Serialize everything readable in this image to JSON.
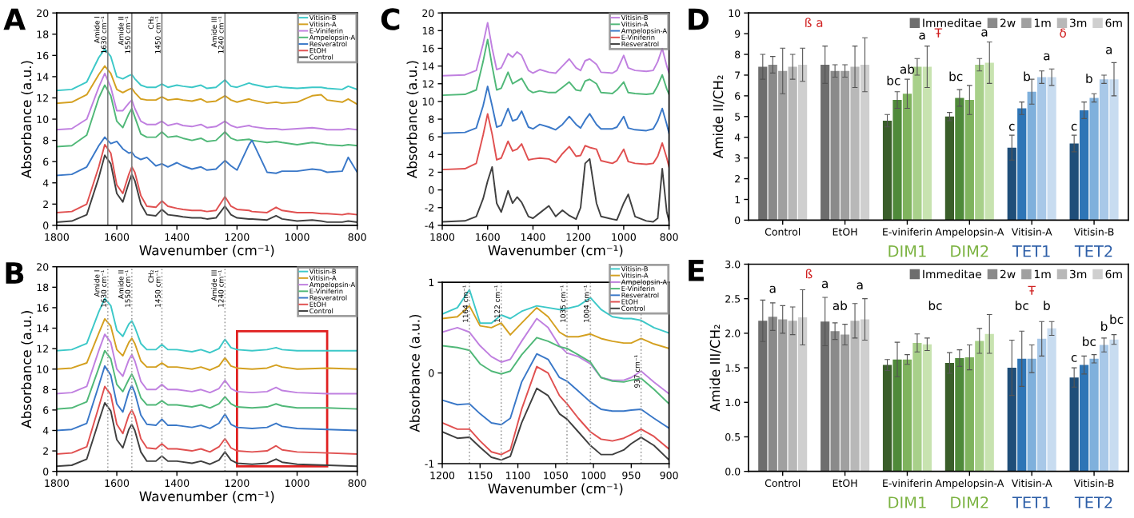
{
  "chart_data": [
    {
      "type": "line",
      "title": "A",
      "xlabel": "Wavenumber (cm⁻¹)",
      "ylabel": "Absorbance (a.u.)",
      "xlim": [
        1800,
        800
      ],
      "ylim": [
        0,
        20
      ],
      "xticks": [
        1800,
        1600,
        1400,
        1200,
        1000,
        800
      ],
      "yticks": [
        0,
        2,
        4,
        6,
        8,
        10,
        12,
        14,
        16,
        18,
        20
      ],
      "legend": "top right",
      "x": [
        1800,
        1750,
        1700,
        1660,
        1640,
        1620,
        1600,
        1580,
        1560,
        1550,
        1540,
        1520,
        1500,
        1470,
        1450,
        1430,
        1400,
        1380,
        1350,
        1320,
        1300,
        1270,
        1240,
        1220,
        1200,
        1160,
        1150,
        1100,
        1070,
        1050,
        1000,
        950,
        920,
        900,
        850,
        830,
        800
      ],
      "series": [
        {
          "name": "Vitisin-B",
          "color": "#3cc8c8",
          "values": [
            12.7,
            12.8,
            13.5,
            15.8,
            16.6,
            15.9,
            14.0,
            13.8,
            14.1,
            14.2,
            13.8,
            13.2,
            13.0,
            13.0,
            13.3,
            13.0,
            13.2,
            13.1,
            13.0,
            13.2,
            12.9,
            13.0,
            13.7,
            13.1,
            13.0,
            13.4,
            13.3,
            13.0,
            13.1,
            13.0,
            12.9,
            13.0,
            13.0,
            12.9,
            12.8,
            13.1,
            12.8
          ]
        },
        {
          "name": "Vitisin-A",
          "color": "#d4a020",
          "values": [
            11.5,
            11.6,
            12.3,
            14.2,
            15.0,
            14.3,
            12.8,
            12.5,
            12.8,
            12.9,
            12.5,
            11.9,
            11.8,
            11.8,
            12.1,
            11.8,
            11.9,
            11.8,
            11.7,
            11.9,
            11.6,
            11.7,
            12.2,
            11.8,
            11.6,
            11.9,
            11.8,
            11.5,
            11.6,
            11.5,
            11.6,
            12.2,
            12.3,
            11.8,
            11.6,
            11.9,
            11.4
          ]
        },
        {
          "name": "E-Viniferin",
          "color": "#c080e0",
          "values": [
            9.0,
            9.1,
            10.0,
            13.0,
            14.3,
            13.0,
            10.8,
            10.8,
            11.5,
            11.8,
            11.0,
            9.8,
            9.5,
            9.5,
            9.8,
            9.4,
            9.6,
            9.4,
            9.3,
            9.5,
            9.2,
            9.3,
            9.8,
            9.4,
            9.2,
            9.4,
            9.3,
            9.1,
            9.1,
            9.0,
            9.1,
            9.2,
            9.1,
            9.0,
            9.0,
            9.1,
            9.0
          ]
        },
        {
          "name": "Ampelopsin-A",
          "color": "#50b878",
          "values": [
            7.4,
            7.5,
            8.5,
            12.0,
            13.2,
            12.2,
            9.8,
            9.2,
            10.5,
            11.0,
            10.2,
            8.6,
            8.3,
            8.3,
            8.8,
            8.3,
            8.4,
            8.2,
            8.0,
            8.2,
            7.9,
            8.0,
            8.8,
            8.2,
            8.0,
            8.1,
            8.0,
            7.8,
            7.9,
            7.8,
            7.6,
            7.8,
            7.7,
            7.6,
            7.5,
            7.6,
            7.5
          ]
        },
        {
          "name": "Resveratrol",
          "color": "#3a78c8",
          "values": [
            4.7,
            4.8,
            5.5,
            7.5,
            8.3,
            7.7,
            7.9,
            7.2,
            6.8,
            6.9,
            6.5,
            6.2,
            6.4,
            5.6,
            5.8,
            5.5,
            5.9,
            5.6,
            5.3,
            5.5,
            5.2,
            5.3,
            6.1,
            5.6,
            5.2,
            7.6,
            8.0,
            5.0,
            4.9,
            5.1,
            5.1,
            5.3,
            5.2,
            5.0,
            5.1,
            6.4,
            5.0
          ]
        },
        {
          "name": "EtOH",
          "color": "#e05050",
          "values": [
            1.2,
            1.3,
            2.0,
            5.5,
            7.6,
            6.8,
            3.8,
            3.0,
            4.8,
            5.5,
            5.0,
            2.8,
            1.8,
            1.7,
            2.3,
            1.8,
            1.6,
            1.5,
            1.4,
            1.4,
            1.3,
            1.4,
            2.7,
            1.8,
            1.5,
            1.4,
            1.3,
            1.2,
            1.7,
            1.4,
            1.2,
            1.2,
            1.1,
            1.1,
            1.0,
            1.1,
            1.0
          ]
        },
        {
          "name": "Control",
          "color": "#404040",
          "values": [
            0.3,
            0.4,
            1.0,
            4.5,
            6.6,
            5.8,
            3.0,
            2.2,
            4.0,
            4.8,
            4.2,
            2.0,
            1.0,
            0.9,
            1.5,
            1.0,
            0.9,
            0.8,
            0.7,
            0.7,
            0.6,
            0.7,
            1.8,
            1.0,
            0.7,
            0.6,
            0.6,
            0.5,
            0.9,
            0.6,
            0.4,
            0.5,
            0.4,
            0.3,
            0.3,
            0.4,
            0.3
          ]
        }
      ],
      "ref_lines": [
        {
          "axis": "x",
          "value": 1630,
          "label": "Amide I\n1630 cm⁻¹",
          "color": "#808080",
          "line_style": "solid"
        },
        {
          "axis": "x",
          "value": 1550,
          "label": "Amide II\n1550 cm⁻¹",
          "color": "#808080",
          "line_style": "solid"
        },
        {
          "axis": "x",
          "value": 1450,
          "label": "CH₂\n1450 cm⁻¹",
          "color": "#808080",
          "line_style": "solid"
        },
        {
          "axis": "x",
          "value": 1240,
          "label": "Amide III\n1240 cm⁻¹",
          "color": "#808080",
          "line_style": "solid"
        }
      ]
    },
    {
      "type": "line",
      "title": "C",
      "xlabel": "Wavenumber (cm⁻¹)",
      "ylabel": "Absorbance (a.u.)",
      "xlim": [
        1800,
        800
      ],
      "ylim": [
        -4,
        20
      ],
      "xticks": [
        1800,
        1600,
        1400,
        1200,
        1000,
        800
      ],
      "yticks": [
        -4,
        -2,
        0,
        2,
        4,
        6,
        8,
        10,
        12,
        14,
        16,
        18,
        20
      ],
      "legend": "top right",
      "x": [
        1800,
        1700,
        1650,
        1620,
        1600,
        1580,
        1560,
        1540,
        1510,
        1490,
        1470,
        1450,
        1420,
        1400,
        1370,
        1330,
        1300,
        1270,
        1240,
        1210,
        1190,
        1170,
        1150,
        1120,
        1100,
        1050,
        1030,
        1000,
        980,
        950,
        900,
        870,
        850,
        830,
        810,
        800
      ],
      "series": [
        {
          "name": "Vitisin-B",
          "color": "#c080e0",
          "values": [
            12.9,
            13.0,
            13.5,
            16.5,
            18.9,
            16.0,
            13.6,
            13.8,
            15.4,
            15.0,
            15.6,
            15.2,
            13.5,
            13.2,
            13.6,
            13.3,
            13.2,
            14.0,
            14.8,
            13.8,
            13.5,
            14.6,
            14.8,
            14.2,
            13.3,
            13.2,
            13.5,
            15.2,
            13.8,
            13.5,
            13.4,
            13.5,
            14.5,
            16.0,
            14.0,
            13.2
          ]
        },
        {
          "name": "Vitisin-A",
          "color": "#50b878",
          "values": [
            10.7,
            10.8,
            11.3,
            14.5,
            17.0,
            14.0,
            11.3,
            11.5,
            13.3,
            12.0,
            12.3,
            12.6,
            11.3,
            11.0,
            11.2,
            11.0,
            11.0,
            11.6,
            12.2,
            11.3,
            11.2,
            12.3,
            12.5,
            12.0,
            11.0,
            10.9,
            11.3,
            12.2,
            11.0,
            10.9,
            10.8,
            10.9,
            11.8,
            13.0,
            11.4,
            10.8
          ]
        },
        {
          "name": "Ampelopsin-A",
          "color": "#3a78c8",
          "values": [
            6.4,
            6.5,
            7.0,
            9.5,
            11.7,
            9.5,
            7.1,
            7.3,
            9.2,
            7.8,
            8.0,
            8.9,
            7.1,
            6.9,
            7.4,
            7.1,
            6.8,
            7.4,
            8.3,
            7.4,
            7.0,
            7.9,
            8.6,
            7.4,
            6.9,
            6.9,
            7.1,
            8.3,
            7.0,
            6.8,
            6.7,
            6.9,
            7.8,
            9.2,
            7.4,
            6.4
          ]
        },
        {
          "name": "E-Viniferin",
          "color": "#e05050",
          "values": [
            2.3,
            2.4,
            3.0,
            6.2,
            8.6,
            6.3,
            3.4,
            3.6,
            5.5,
            4.4,
            4.6,
            5.2,
            3.4,
            3.5,
            3.6,
            3.5,
            3.1,
            4.1,
            4.9,
            3.8,
            3.9,
            5.0,
            4.8,
            4.6,
            3.3,
            3.0,
            3.3,
            4.6,
            3.2,
            3.0,
            2.9,
            3.0,
            3.8,
            5.3,
            3.6,
            2.6
          ]
        },
        {
          "name": "Resveratrol",
          "color": "#404040",
          "values": [
            -3.6,
            -3.5,
            -3.0,
            -1.0,
            1.0,
            2.6,
            -1.5,
            -2.5,
            -0.1,
            -1.5,
            -0.8,
            -1.4,
            -3.0,
            -3.2,
            -2.6,
            -1.8,
            -3.0,
            -2.3,
            -2.9,
            -3.3,
            -2.0,
            3.0,
            3.5,
            -1.5,
            -3.0,
            -3.3,
            -3.4,
            -1.5,
            -0.5,
            -3.0,
            -3.5,
            -3.6,
            -3.2,
            2.4,
            -2.5,
            -3.5
          ]
        }
      ]
    },
    {
      "type": "bar",
      "title": "D",
      "ylabel": "Amide II/CH₂",
      "ylim": [
        0,
        10
      ],
      "yticks": [
        0,
        1,
        2,
        3,
        4,
        5,
        6,
        7,
        8,
        9,
        10
      ],
      "legend": "top right",
      "categories": [
        "Control",
        "EtOH",
        "E-viniferin",
        "Ampelopsin-A",
        "Vitisin-A",
        "Vitisin-B"
      ],
      "series": [
        {
          "name": "Immeditae",
          "color": "#6e6e6e",
          "colors": [
            "#6e6e6e",
            "#6e6e6e",
            "#3a5e2a",
            "#3a5e2a",
            "#1f4e79",
            "#1f4e79"
          ],
          "values": [
            7.4,
            7.5,
            4.8,
            5.0,
            3.5,
            3.7
          ],
          "errors": [
            0.6,
            0.9,
            0.3,
            0.2,
            0.6,
            0.4
          ]
        },
        {
          "name": "2w",
          "color": "#8a8a8a",
          "colors": [
            "#8a8a8a",
            "#8a8a8a",
            "#4f8a3a",
            "#4f8a3a",
            "#2e75b6",
            "#2e75b6"
          ],
          "values": [
            7.5,
            7.2,
            5.8,
            5.9,
            5.4,
            5.3
          ],
          "errors": [
            0.4,
            0.3,
            0.4,
            0.4,
            0.3,
            0.4
          ]
        },
        {
          "name": "1m",
          "color": "#a0a0a0",
          "colors": [
            "#a0a0a0",
            "#a0a0a0",
            "#7fb35e",
            "#7fb35e",
            "#7fb0dc",
            "#7fb0dc"
          ],
          "values": [
            7.2,
            7.2,
            6.1,
            5.8,
            6.2,
            5.9
          ],
          "errors": [
            1.1,
            0.3,
            0.7,
            0.7,
            0.6,
            0.2
          ]
        },
        {
          "name": "3m",
          "color": "#b8b8b8",
          "colors": [
            "#b8b8b8",
            "#b8b8b8",
            "#a8d08a",
            "#a8d08a",
            "#a8c8e8",
            "#a8c8e8"
          ],
          "values": [
            7.4,
            7.4,
            7.4,
            7.5,
            6.9,
            6.8
          ],
          "errors": [
            0.6,
            1.0,
            0.4,
            0.3,
            0.3,
            0.2
          ]
        },
        {
          "name": "6m",
          "color": "#cfcfcf",
          "colors": [
            "#cfcfcf",
            "#cfcfcf",
            "#c8e3b0",
            "#c8e3b0",
            "#c8dcf0",
            "#c8dcf0"
          ],
          "values": [
            7.5,
            7.5,
            7.4,
            7.6,
            6.9,
            6.8
          ],
          "errors": [
            0.8,
            1.3,
            1.0,
            1.0,
            0.4,
            0.8
          ]
        }
      ],
      "annotations": [
        "ß a",
        "bc",
        "ab",
        "a",
        "bc",
        "Ŧ",
        "a",
        "c",
        "b",
        "δ",
        "a",
        "c",
        "b",
        "a",
        "DIM1",
        "DIM2",
        "TET1",
        "TET2"
      ]
    },
    {
      "type": "line",
      "title": "B",
      "xlabel": "Wavenumber (cm⁻¹)",
      "ylabel": "Absorbance (a.u.)",
      "xlim": [
        1800,
        800
      ],
      "ylim": [
        0,
        20
      ],
      "xticks": [
        1800,
        1600,
        1400,
        1200,
        1000,
        800
      ],
      "yticks": [
        0,
        2,
        4,
        6,
        8,
        10,
        12,
        14,
        16,
        18,
        20
      ],
      "legend": "top right",
      "x": [
        1800,
        1750,
        1700,
        1660,
        1640,
        1620,
        1600,
        1580,
        1560,
        1550,
        1540,
        1520,
        1500,
        1470,
        1450,
        1430,
        1400,
        1350,
        1320,
        1290,
        1260,
        1240,
        1220,
        1200,
        1150,
        1100,
        1070,
        1050,
        1000,
        900,
        800
      ],
      "series": [
        {
          "name": "Vitisin-B",
          "color": "#3cc8c8",
          "values": [
            11.8,
            11.9,
            12.5,
            15.6,
            16.9,
            16.2,
            13.8,
            13.2,
            14.4,
            14.7,
            14.1,
            12.5,
            11.9,
            11.9,
            12.4,
            11.9,
            11.9,
            11.7,
            11.9,
            11.6,
            12.0,
            12.9,
            12.1,
            11.9,
            11.8,
            11.9,
            12.1,
            11.9,
            11.8,
            11.8,
            11.8
          ]
        },
        {
          "name": "Vitisin-A",
          "color": "#d4a020",
          "values": [
            10.0,
            10.1,
            10.6,
            13.5,
            14.9,
            14.2,
            11.9,
            11.3,
            12.6,
            13.0,
            12.5,
            10.8,
            10.2,
            10.2,
            10.6,
            10.2,
            10.2,
            10.0,
            10.2,
            9.9,
            10.3,
            11.1,
            10.3,
            10.1,
            10.0,
            10.1,
            10.4,
            10.2,
            10.0,
            10.1,
            10.0
          ]
        },
        {
          "name": "Ampelopsin-A",
          "color": "#c080e0",
          "values": [
            7.6,
            7.7,
            8.3,
            11.8,
            13.4,
            12.6,
            10.0,
            9.3,
            10.9,
            11.4,
            10.8,
            8.8,
            8.0,
            8.0,
            8.5,
            8.0,
            8.0,
            7.8,
            8.0,
            7.7,
            8.1,
            8.9,
            8.1,
            7.8,
            7.7,
            7.8,
            8.2,
            7.9,
            7.7,
            7.6,
            7.6
          ]
        },
        {
          "name": "E-Viniferin",
          "color": "#50b878",
          "values": [
            6.1,
            6.2,
            6.8,
            10.1,
            11.8,
            11.0,
            8.5,
            7.8,
            9.0,
            9.5,
            8.9,
            7.2,
            6.5,
            6.5,
            6.9,
            6.5,
            6.5,
            6.3,
            6.5,
            6.2,
            6.6,
            7.3,
            6.6,
            6.3,
            6.2,
            6.3,
            6.6,
            6.4,
            6.2,
            6.2,
            6.1
          ]
        },
        {
          "name": "Resveratrol",
          "color": "#3a78c8",
          "values": [
            4.0,
            4.1,
            4.7,
            8.4,
            10.3,
            9.4,
            6.6,
            5.8,
            7.8,
            8.4,
            7.7,
            5.5,
            4.6,
            4.5,
            5.1,
            4.5,
            4.5,
            4.3,
            4.5,
            4.2,
            4.7,
            5.6,
            4.6,
            4.3,
            4.2,
            4.3,
            4.7,
            4.4,
            4.2,
            4.1,
            4.0
          ]
        },
        {
          "name": "EtOH",
          "color": "#e05050",
          "values": [
            1.7,
            1.8,
            2.4,
            6.3,
            8.3,
            7.5,
            4.6,
            3.7,
            5.5,
            6.0,
            5.4,
            3.2,
            2.3,
            2.2,
            2.7,
            2.2,
            2.2,
            2.0,
            2.2,
            1.9,
            2.4,
            3.2,
            2.3,
            2.0,
            1.9,
            2.0,
            2.5,
            2.1,
            1.9,
            1.8,
            1.7
          ]
        },
        {
          "name": "Control",
          "color": "#404040",
          "values": [
            0.5,
            0.6,
            1.2,
            4.9,
            6.7,
            5.9,
            3.1,
            2.3,
            4.1,
            4.6,
            4.0,
            1.9,
            1.0,
            1.0,
            1.5,
            1.0,
            1.0,
            0.8,
            1.0,
            0.7,
            1.1,
            1.9,
            1.1,
            0.8,
            0.7,
            0.8,
            1.2,
            0.9,
            0.7,
            0.6,
            0.5
          ]
        }
      ],
      "ref_lines": [
        {
          "axis": "x",
          "value": 1630,
          "label": "Amide I\n1630 cm⁻¹",
          "color": "#a0a0a0",
          "line_style": "dotted"
        },
        {
          "axis": "x",
          "value": 1550,
          "label": "Amide II\n1550 cm⁻¹",
          "color": "#a0a0a0",
          "line_style": "dotted"
        },
        {
          "axis": "x",
          "value": 1450,
          "label": "CH₂\n1450 cm⁻¹",
          "color": "#a0a0a0",
          "line_style": "dotted"
        },
        {
          "axis": "x",
          "value": 1240,
          "label": "Amide III\n1240 cm⁻¹",
          "color": "#a0a0a0",
          "line_style": "dotted"
        }
      ]
    },
    {
      "type": "line",
      "xlabel": "Wavenumber (cm⁻¹)",
      "ylabel": "Absorbance (a.u.)",
      "xlim": [
        1200,
        900
      ],
      "ylim": [
        -1,
        1
      ],
      "xticks": [
        1200,
        1150,
        1100,
        1050,
        1000,
        950,
        900
      ],
      "yticks": [
        -1,
        0,
        1
      ],
      "legend": "top right",
      "x": [
        1200,
        1180,
        1164,
        1150,
        1135,
        1122,
        1110,
        1095,
        1075,
        1060,
        1045,
        1035,
        1020,
        1004,
        990,
        975,
        960,
        950,
        937,
        920,
        900
      ],
      "series": [
        {
          "name": "Vitisin-B",
          "color": "#3cc8c8",
          "values": [
            0.65,
            0.72,
            0.92,
            0.55,
            0.55,
            0.64,
            0.6,
            0.68,
            0.74,
            0.72,
            0.7,
            0.71,
            0.74,
            0.83,
            0.7,
            0.62,
            0.6,
            0.6,
            0.58,
            0.5,
            0.44
          ]
        },
        {
          "name": "Vitisin-A",
          "color": "#d4a020",
          "values": [
            0.6,
            0.62,
            0.74,
            0.52,
            0.5,
            0.55,
            0.42,
            0.55,
            0.72,
            0.62,
            0.45,
            0.4,
            0.4,
            0.43,
            0.38,
            0.35,
            0.33,
            0.33,
            0.38,
            0.32,
            0.27
          ]
        },
        {
          "name": "Ampelopsin-A",
          "color": "#c080e0",
          "values": [
            0.45,
            0.5,
            0.45,
            0.3,
            0.18,
            0.12,
            0.15,
            0.35,
            0.6,
            0.5,
            0.3,
            0.22,
            0.18,
            0.1,
            -0.05,
            -0.08,
            -0.08,
            -0.05,
            0.02,
            -0.1,
            -0.23
          ]
        },
        {
          "name": "E-Viniferin",
          "color": "#50b878",
          "values": [
            0.3,
            0.28,
            0.25,
            0.1,
            0.02,
            -0.01,
            0.02,
            0.2,
            0.39,
            0.35,
            0.29,
            0.27,
            0.2,
            0.12,
            -0.05,
            -0.09,
            -0.1,
            -0.08,
            -0.06,
            -0.18,
            -0.34
          ]
        },
        {
          "name": "Resveratrol",
          "color": "#3a78c8",
          "values": [
            -0.3,
            -0.35,
            -0.34,
            -0.45,
            -0.55,
            -0.57,
            -0.5,
            -0.1,
            0.21,
            0.15,
            -0.05,
            -0.09,
            -0.2,
            -0.32,
            -0.4,
            -0.42,
            -0.42,
            -0.41,
            -0.4,
            -0.5,
            -0.61
          ]
        },
        {
          "name": "EtOH",
          "color": "#e05050",
          "values": [
            -0.55,
            -0.62,
            -0.62,
            -0.75,
            -0.87,
            -0.9,
            -0.85,
            -0.4,
            0.07,
            0.0,
            -0.25,
            -0.34,
            -0.5,
            -0.65,
            -0.73,
            -0.75,
            -0.72,
            -0.68,
            -0.62,
            -0.7,
            -0.84
          ]
        },
        {
          "name": "Control",
          "color": "#404040",
          "values": [
            -0.65,
            -0.72,
            -0.71,
            -0.82,
            -0.93,
            -0.96,
            -0.92,
            -0.55,
            -0.17,
            -0.25,
            -0.45,
            -0.51,
            -0.65,
            -0.8,
            -0.9,
            -0.9,
            -0.85,
            -0.78,
            -0.71,
            -0.8,
            -0.96
          ]
        }
      ],
      "ref_lines": [
        {
          "axis": "x",
          "value": 1164,
          "label": "1164 cm⁻¹",
          "color": "#a0a0a0",
          "line_style": "dotted"
        },
        {
          "axis": "x",
          "value": 1122,
          "label": "1122 cm⁻¹",
          "color": "#a0a0a0",
          "line_style": "dotted"
        },
        {
          "axis": "x",
          "value": 1035,
          "label": "1035 cm⁻¹",
          "color": "#a0a0a0",
          "line_style": "dotted"
        },
        {
          "axis": "x",
          "value": 1004,
          "label": "1004 cm⁻¹",
          "color": "#a0a0a0",
          "line_style": "dotted"
        },
        {
          "axis": "x",
          "value": 937,
          "label": "937 cm⁻¹",
          "color": "#a0a0a0",
          "line_style": "dotted"
        }
      ]
    },
    {
      "type": "bar",
      "title": "E",
      "ylabel": "Amide III/CH₂",
      "ylim": [
        0,
        3
      ],
      "yticks": [
        {
          "value": 0,
          "label": "0.0"
        },
        0.5,
        {
          "value": 1,
          "label": "1.0"
        },
        1.5,
        {
          "value": 2,
          "label": "2.0"
        },
        2.5,
        {
          "value": 3,
          "label": "3.0"
        }
      ],
      "legend": "top right",
      "categories": [
        "Control",
        "EtOH",
        "E-viniferin",
        "Ampelopsin-A",
        "Vitisin-A",
        "Vitisin-B"
      ],
      "series": [
        {
          "name": "Immeditae",
          "color": "#6e6e6e",
          "colors": [
            "#6e6e6e",
            "#6e6e6e",
            "#3a5e2a",
            "#3a5e2a",
            "#1f4e79",
            "#1f4e79"
          ],
          "values": [
            2.18,
            2.17,
            1.54,
            1.57,
            1.5,
            1.36
          ],
          "errors": [
            0.3,
            0.35,
            0.08,
            0.15,
            0.4,
            0.14
          ]
        },
        {
          "name": "2w",
          "color": "#8a8a8a",
          "colors": [
            "#8a8a8a",
            "#8a8a8a",
            "#4f8a3a",
            "#4f8a3a",
            "#2e75b6",
            "#2e75b6"
          ],
          "values": [
            2.24,
            2.03,
            1.62,
            1.64,
            1.63,
            1.54
          ],
          "errors": [
            0.2,
            0.12,
            0.25,
            0.12,
            0.4,
            0.13
          ]
        },
        {
          "name": "1m",
          "color": "#a0a0a0",
          "colors": [
            "#a0a0a0",
            "#a0a0a0",
            "#7fb35e",
            "#7fb35e",
            "#7fb0dc",
            "#7fb0dc"
          ],
          "values": [
            2.2,
            1.98,
            1.62,
            1.65,
            1.63,
            1.63
          ],
          "errors": [
            0.2,
            0.15,
            0.07,
            0.18,
            0.2,
            0.06
          ]
        },
        {
          "name": "3m",
          "color": "#b8b8b8",
          "colors": [
            "#b8b8b8",
            "#b8b8b8",
            "#a8d08a",
            "#a8d08a",
            "#a8c8e8",
            "#a8c8e8"
          ],
          "values": [
            2.18,
            2.18,
            1.86,
            1.89,
            1.92,
            1.83
          ],
          "errors": [
            0.2,
            0.25,
            0.13,
            0.18,
            0.25,
            0.1
          ]
        },
        {
          "name": "6m",
          "color": "#cfcfcf",
          "colors": [
            "#cfcfcf",
            "#cfcfcf",
            "#c8e3b0",
            "#c8e3b0",
            "#c8dcf0",
            "#c8dcf0"
          ],
          "values": [
            2.23,
            2.2,
            1.84,
            1.99,
            2.07,
            1.91
          ],
          "errors": [
            0.4,
            0.3,
            0.09,
            0.28,
            0.1,
            0.07
          ]
        }
      ],
      "annotations": [
        "a",
        "ß",
        "a",
        "ab",
        "a",
        "bc",
        "bc",
        "Ŧ",
        "b",
        "c",
        "bc",
        "b",
        "bc",
        "DIM1",
        "DIM2",
        "TET1",
        "TET2"
      ]
    }
  ]
}
